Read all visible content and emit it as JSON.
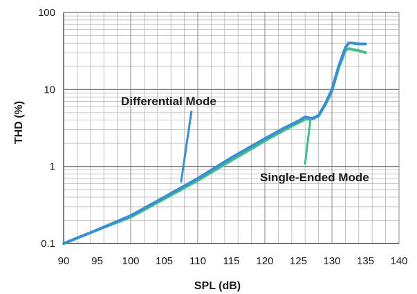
{
  "chart_data": {
    "type": "line",
    "xlabel": "SPL (dB)",
    "ylabel": "THD (%)",
    "xlim": [
      90,
      140
    ],
    "ylim": [
      0.1,
      100
    ],
    "yscale": "log",
    "grid": true,
    "x_ticks": [
      90,
      95,
      100,
      105,
      110,
      115,
      120,
      125,
      130,
      135,
      140
    ],
    "y_ticks": [
      {
        "value": 0.1,
        "label": "0.1"
      },
      {
        "value": 1,
        "label": "1"
      },
      {
        "value": 10,
        "label": "10"
      },
      {
        "value": 100,
        "label": "100"
      }
    ],
    "series": [
      {
        "name": "Differential Mode",
        "color": "#3a8fd0",
        "points": [
          [
            90,
            0.1
          ],
          [
            95,
            0.15
          ],
          [
            100,
            0.23
          ],
          [
            105,
            0.4
          ],
          [
            110,
            0.7
          ],
          [
            115,
            1.3
          ],
          [
            120,
            2.3
          ],
          [
            123,
            3.2
          ],
          [
            125,
            3.9
          ],
          [
            126,
            4.4
          ],
          [
            127,
            4.2
          ],
          [
            128,
            4.6
          ],
          [
            129,
            6.5
          ],
          [
            130,
            10.0
          ],
          [
            131,
            20.0
          ],
          [
            132,
            35.0
          ],
          [
            132.5,
            40.0
          ],
          [
            133,
            40.0
          ],
          [
            134,
            39.0
          ],
          [
            135,
            39.0
          ]
        ]
      },
      {
        "name": "Single-Ended Mode",
        "color": "#3fbf8c",
        "points": [
          [
            90,
            0.1
          ],
          [
            95,
            0.15
          ],
          [
            100,
            0.22
          ],
          [
            105,
            0.38
          ],
          [
            110,
            0.66
          ],
          [
            115,
            1.2
          ],
          [
            120,
            2.15
          ],
          [
            123,
            3.0
          ],
          [
            125,
            3.7
          ],
          [
            126,
            4.1
          ],
          [
            127,
            4.1
          ],
          [
            128,
            4.5
          ],
          [
            129,
            6.3
          ],
          [
            130,
            9.5
          ],
          [
            131,
            19.0
          ],
          [
            132,
            32.0
          ],
          [
            132.5,
            34.0
          ],
          [
            133,
            33.0
          ],
          [
            134,
            32.0
          ],
          [
            135,
            30.0
          ]
        ]
      }
    ],
    "annotations": [
      {
        "label": "Differential Mode",
        "series": 0,
        "x": 107.5,
        "y": 0.62,
        "color": "#3a8fd0"
      },
      {
        "label": "Single-Ended Mode",
        "series": 1,
        "x": 126.8,
        "y": 4.1,
        "color": "#3fbf8c"
      }
    ]
  }
}
